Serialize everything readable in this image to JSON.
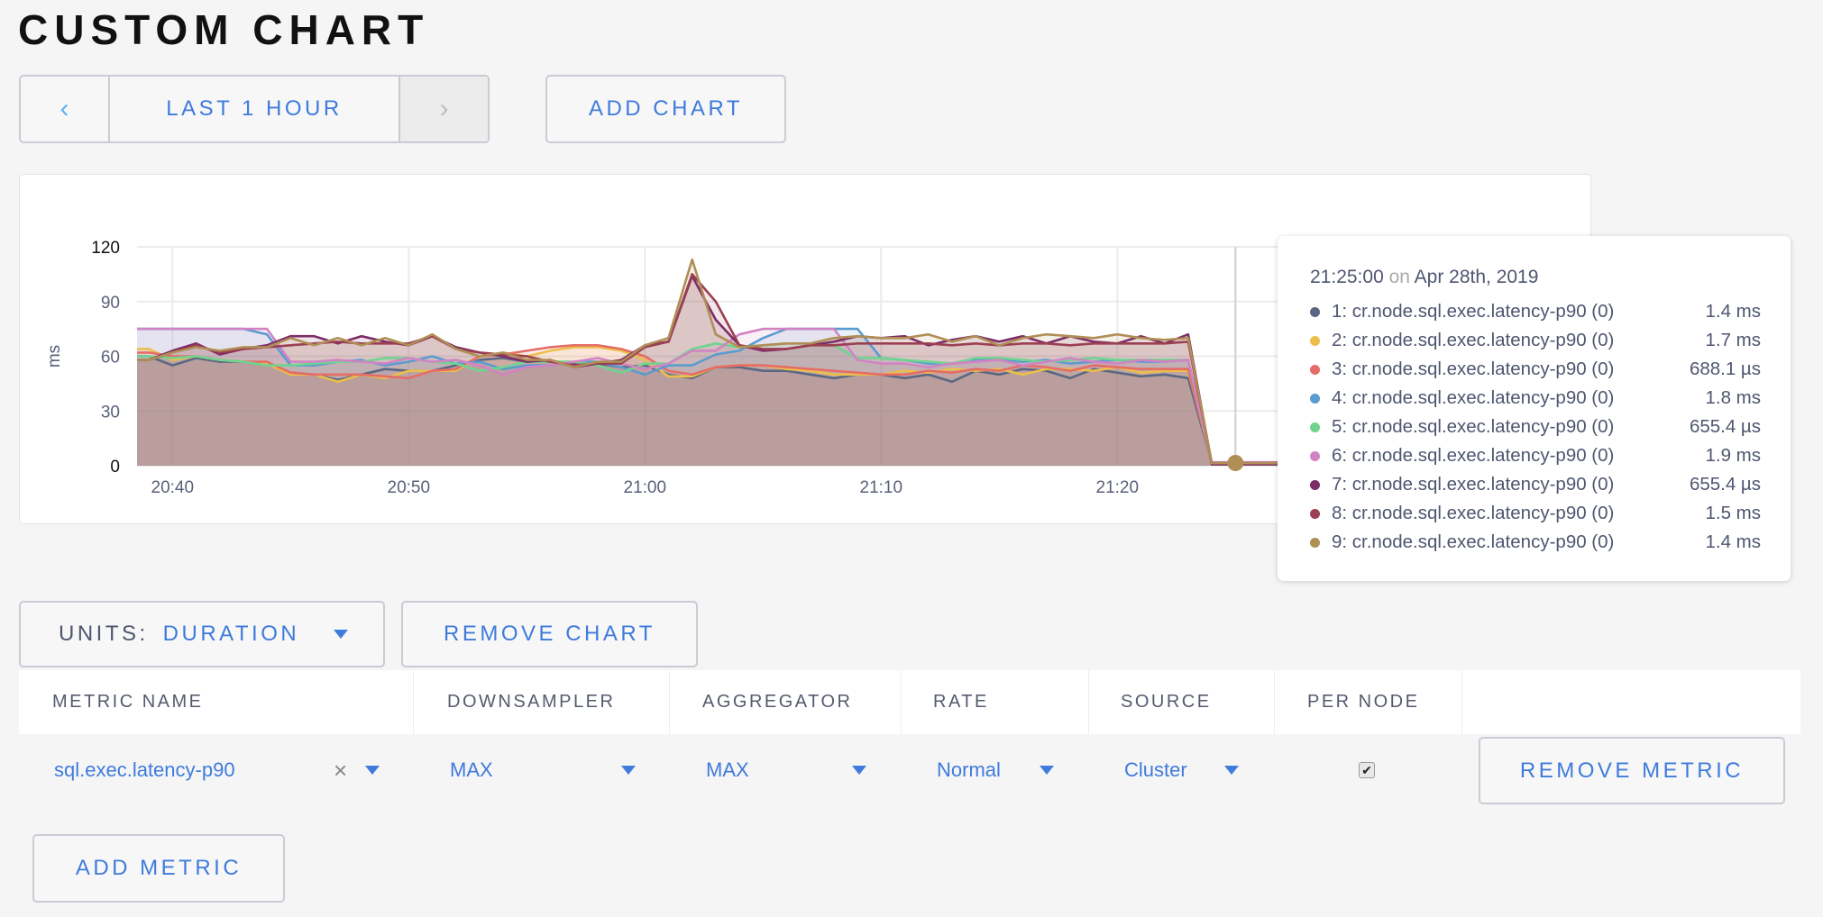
{
  "page_title": "CUSTOM CHART",
  "toolbar": {
    "prev_icon": "chevron-left-icon",
    "prev_glyph": "‹",
    "time_range_label": "LAST 1 HOUR",
    "next_icon": "chevron-right-icon",
    "next_glyph": "›",
    "add_chart_label": "ADD CHART"
  },
  "chart_data": {
    "type": "area",
    "ylabel": "ms",
    "ylim": [
      0,
      120
    ],
    "yticks": [
      "0",
      "30",
      "60",
      "90",
      "120"
    ],
    "xticks": [
      "20:40",
      "20:50",
      "21:00",
      "21:10",
      "21:20"
    ],
    "xlim": [
      "20:38:30",
      "21:38:30"
    ],
    "grid": true,
    "cursor_time": "21:25",
    "x": [
      "20:39",
      "20:40",
      "20:41",
      "20:42",
      "20:43",
      "20:44",
      "20:45",
      "20:46",
      "20:47",
      "20:48",
      "20:49",
      "20:50",
      "20:51",
      "20:52",
      "20:53",
      "20:54",
      "20:55",
      "20:56",
      "20:57",
      "20:58",
      "20:59",
      "21:00",
      "21:01",
      "21:02",
      "21:03",
      "21:04",
      "21:05",
      "21:06",
      "21:07",
      "21:08",
      "21:09",
      "21:10",
      "21:11",
      "21:12",
      "21:13",
      "21:14",
      "21:15",
      "21:16",
      "21:17",
      "21:18",
      "21:19",
      "21:20",
      "21:21",
      "21:22",
      "21:23",
      "21:24",
      "21:25",
      "21:26",
      "21:27",
      "21:28",
      "21:29",
      "21:30",
      "21:31",
      "21:32",
      "21:33",
      "21:34",
      "21:35",
      "21:36",
      "21:37",
      "21:38"
    ],
    "series": [
      {
        "name": "1: cr.node.sql.exec.latency-p90 (0)",
        "color": "#5b6782",
        "values": [
          60,
          55,
          59,
          57,
          57,
          56,
          51,
          50,
          47,
          50,
          53,
          52,
          52,
          55,
          58,
          59,
          57,
          57,
          56,
          56,
          54,
          55,
          50,
          48,
          54,
          54,
          52,
          52,
          50,
          48,
          50,
          50,
          48,
          50,
          46,
          52,
          50,
          53,
          52,
          48,
          53,
          51,
          49,
          50,
          48,
          1.4,
          1.4,
          1.4,
          1.4,
          1.4,
          1.4,
          1.4,
          1.4,
          1.4,
          1.4,
          1.4,
          1.4,
          1.4,
          1.4,
          1.4
        ]
      },
      {
        "name": "2: cr.node.sql.exec.latency-p90 (0)",
        "color": "#ecbf4a",
        "values": [
          64,
          58,
          60,
          58,
          57,
          56,
          50,
          50,
          46,
          50,
          48,
          52,
          52,
          52,
          60,
          62,
          60,
          63,
          65,
          65,
          63,
          58,
          49,
          49,
          54,
          55,
          55,
          53,
          52,
          50,
          50,
          50,
          52,
          51,
          53,
          52,
          53,
          50,
          53,
          53,
          52,
          54,
          51,
          52,
          52,
          1.7,
          1.7,
          1.7,
          1.7,
          1.7,
          1.7,
          1.7,
          1.7,
          1.7,
          1.7,
          1.7,
          1.7,
          1.7,
          1.7,
          1.7
        ]
      },
      {
        "name": "3: cr.node.sql.exec.latency-p90 (0)",
        "color": "#e56d66",
        "values": [
          62,
          60,
          60,
          58,
          57,
          57,
          51,
          50,
          50,
          50,
          49,
          48,
          52,
          53,
          60,
          61,
          63,
          65,
          66,
          66,
          64,
          60,
          52,
          50,
          54,
          55,
          55,
          54,
          53,
          52,
          51,
          50,
          50,
          52,
          51,
          53,
          52,
          55,
          54,
          52,
          55,
          54,
          53,
          53,
          53,
          0.7,
          0.7,
          0.7,
          0.7,
          0.7,
          0.7,
          0.7,
          0.7,
          0.7,
          0.7,
          0.7,
          0.7,
          0.7,
          0.7,
          0.7
        ]
      },
      {
        "name": "4: cr.node.sql.exec.latency-p90 (0)",
        "color": "#5a9bd0",
        "values": [
          75,
          75,
          75,
          75,
          75,
          72,
          55,
          55,
          57,
          58,
          55,
          57,
          60,
          56,
          57,
          53,
          55,
          55,
          57,
          57,
          54,
          50,
          55,
          55,
          61,
          63,
          70,
          75,
          75,
          75,
          75,
          59,
          58,
          56,
          56,
          58,
          58,
          57,
          58,
          56,
          57,
          58,
          57,
          57,
          58,
          1.8,
          1.8,
          1.8,
          1.8,
          1.8,
          1.8,
          1.8,
          1.8,
          1.8,
          1.8,
          1.8,
          1.8,
          1.8,
          1.8,
          1.8
        ]
      },
      {
        "name": "5: cr.node.sql.exec.latency-p90 (0)",
        "color": "#6fd48f",
        "values": [
          60,
          59,
          60,
          58,
          57,
          55,
          55,
          56,
          57,
          57,
          59,
          59,
          57,
          56,
          52,
          54,
          57,
          57,
          57,
          55,
          51,
          56,
          56,
          64,
          67,
          65,
          66,
          67,
          67,
          66,
          59,
          59,
          58,
          57,
          56,
          59,
          59,
          58,
          57,
          58,
          59,
          58,
          58,
          58,
          58,
          0.7,
          0.7,
          0.7,
          0.7,
          0.7,
          0.7,
          0.7,
          0.7,
          0.7,
          0.7,
          0.7,
          0.7,
          0.7,
          0.7,
          0.7
        ]
      },
      {
        "name": "6: cr.node.sql.exec.latency-p90 (0)",
        "color": "#d283c4",
        "values": [
          75,
          75,
          75,
          75,
          75,
          75,
          57,
          57,
          58,
          57,
          56,
          59,
          57,
          58,
          55,
          50,
          54,
          55,
          57,
          59,
          56,
          53,
          56,
          63,
          63,
          72,
          75,
          75,
          75,
          75,
          58,
          56,
          56,
          54,
          56,
          57,
          58,
          55,
          57,
          59,
          57,
          56,
          58,
          57,
          58,
          1.9,
          1.9,
          1.9,
          1.9,
          1.9,
          1.9,
          1.9,
          1.9,
          1.9,
          1.9,
          1.9,
          1.9,
          1.9,
          1.9,
          1.9
        ]
      },
      {
        "name": "7: cr.node.sql.exec.latency-p90 (0)",
        "color": "#7d2d68",
        "values": [
          58,
          63,
          67,
          61,
          64,
          66,
          71,
          71,
          67,
          71,
          68,
          66,
          71,
          65,
          62,
          60,
          57,
          58,
          54,
          56,
          58,
          66,
          68,
          104,
          80,
          66,
          63,
          64,
          66,
          68,
          71,
          70,
          71,
          66,
          69,
          71,
          68,
          71,
          67,
          71,
          68,
          67,
          71,
          67,
          72,
          0.7,
          0.7,
          0.7,
          0.7,
          0.7,
          0.7,
          0.7,
          0.7,
          0.7,
          0.7,
          0.7,
          0.7,
          0.7,
          0.7,
          0.7
        ]
      },
      {
        "name": "8: cr.node.sql.exec.latency-p90 (0)",
        "color": "#9b3f52",
        "values": [
          58,
          62,
          66,
          62,
          64,
          65,
          66,
          67,
          68,
          67,
          67,
          67,
          71,
          64,
          62,
          61,
          60,
          57,
          55,
          56,
          56,
          65,
          68,
          105,
          90,
          66,
          64,
          64,
          66,
          66,
          67,
          67,
          67,
          67,
          66,
          67,
          66,
          67,
          67,
          66,
          67,
          67,
          67,
          67,
          68,
          1.5,
          1.5,
          1.5,
          1.5,
          1.5,
          1.5,
          1.5,
          1.5,
          1.5,
          1.5,
          1.5,
          1.5,
          1.5,
          1.5,
          1.5
        ]
      },
      {
        "name": "9: cr.node.sql.exec.latency-p90 (0)",
        "color": "#b08f56",
        "values": [
          58,
          62,
          65,
          63,
          65,
          65,
          70,
          66,
          70,
          66,
          70,
          66,
          72,
          64,
          60,
          62,
          58,
          58,
          54,
          57,
          57,
          66,
          70,
          113,
          72,
          65,
          66,
          67,
          67,
          70,
          71,
          70,
          70,
          72,
          68,
          71,
          66,
          70,
          72,
          71,
          70,
          72,
          70,
          69,
          70,
          1.4,
          1.4,
          1.4,
          1.4,
          1.4,
          1.4,
          1.4,
          1.4,
          1.4,
          1.4,
          1.4,
          1.4,
          1.4,
          1.4,
          1.4
        ]
      }
    ]
  },
  "tooltip": {
    "time": "21:25:00",
    "on": "on",
    "date": "Apr 28th, 2019",
    "rows": [
      {
        "label": "1: cr.node.sql.exec.latency-p90 (0)",
        "value": "1.4 ms",
        "color": "#5b6782"
      },
      {
        "label": "2: cr.node.sql.exec.latency-p90 (0)",
        "value": "1.7 ms",
        "color": "#ecbf4a"
      },
      {
        "label": "3: cr.node.sql.exec.latency-p90 (0)",
        "value": "688.1 µs",
        "color": "#e56d66"
      },
      {
        "label": "4: cr.node.sql.exec.latency-p90 (0)",
        "value": "1.8 ms",
        "color": "#5a9bd0"
      },
      {
        "label": "5: cr.node.sql.exec.latency-p90 (0)",
        "value": "655.4 µs",
        "color": "#6fd48f"
      },
      {
        "label": "6: cr.node.sql.exec.latency-p90 (0)",
        "value": "1.9 ms",
        "color": "#d283c4"
      },
      {
        "label": "7: cr.node.sql.exec.latency-p90 (0)",
        "value": "655.4 µs",
        "color": "#7d2d68"
      },
      {
        "label": "8: cr.node.sql.exec.latency-p90 (0)",
        "value": "1.5 ms",
        "color": "#9b3f52"
      },
      {
        "label": "9: cr.node.sql.exec.latency-p90 (0)",
        "value": "1.4 ms",
        "color": "#b08f56"
      }
    ]
  },
  "controls": {
    "units_label": "UNITS:",
    "units_value": "DURATION",
    "remove_chart_label": "REMOVE CHART"
  },
  "metrics_table": {
    "headers": [
      "METRIC NAME",
      "DOWNSAMPLER",
      "AGGREGATOR",
      "RATE",
      "SOURCE",
      "PER NODE"
    ],
    "row": {
      "metric_name": "sql.exec.latency-p90",
      "clear_glyph": "×",
      "downsampler": "MAX",
      "aggregator": "MAX",
      "rate": "Normal",
      "source": "Cluster",
      "per_node_checked": true,
      "check_glyph": "✔",
      "remove_metric_label": "REMOVE METRIC"
    },
    "add_metric_label": "ADD METRIC"
  },
  "colors": {
    "accent": "#3f7bdc",
    "border": "#c9ccd5",
    "background": "#f5f5f5"
  }
}
